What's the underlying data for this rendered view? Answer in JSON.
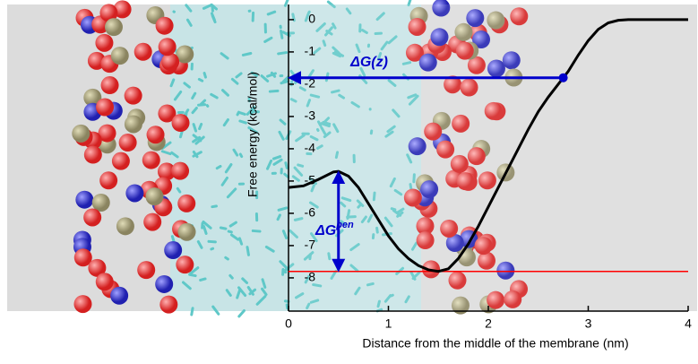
{
  "chart_data": {
    "type": "line",
    "x_label": "Distance from the middle of the membrane (nm)",
    "y_label": "Free energy (kcal/mol)",
    "x": [
      0,
      0.15,
      0.3,
      0.45,
      0.5,
      0.6,
      0.7,
      0.8,
      0.9,
      1.0,
      1.1,
      1.2,
      1.3,
      1.4,
      1.5,
      1.6,
      1.7,
      1.8,
      1.9,
      2.0,
      2.1,
      2.2,
      2.3,
      2.4,
      2.5,
      2.6,
      2.7,
      2.8,
      2.9,
      3.0,
      3.1,
      3.2,
      3.3,
      3.4,
      3.6,
      3.8,
      4.0
    ],
    "values": [
      -5.2,
      -5.15,
      -4.95,
      -4.72,
      -4.7,
      -4.85,
      -5.2,
      -5.7,
      -6.2,
      -6.7,
      -7.1,
      -7.4,
      -7.62,
      -7.75,
      -7.8,
      -7.72,
      -7.4,
      -6.95,
      -6.4,
      -5.8,
      -5.2,
      -4.6,
      -4.0,
      -3.4,
      -2.85,
      -2.4,
      -2.0,
      -1.6,
      -1.1,
      -0.65,
      -0.3,
      -0.1,
      -0.02,
      0,
      0,
      0,
      0
    ],
    "color": "#000000",
    "reference_line": {
      "value": -7.8,
      "color": "#ff0000"
    },
    "point": {
      "x": 2.75,
      "y": -1.8,
      "color": "#0000cc"
    },
    "annotations": [
      {
        "text": "ΔG(z)",
        "x": [
          2.75,
          0
        ],
        "y": -1.8,
        "color": "#0000cc"
      },
      {
        "text": "ΔG",
        "superscript": "pen",
        "x": 0.5,
        "y": [
          -4.7,
          -7.8
        ],
        "color": "#0000cc"
      }
    ],
    "xlim": [
      0,
      4
    ],
    "ylim": [
      -9.03,
      0.47
    ],
    "xticks": [
      0,
      1,
      2,
      3,
      4
    ],
    "yticks": [
      0,
      -1,
      -2,
      -3,
      -4,
      -5,
      -6,
      -7,
      -8
    ]
  }
}
